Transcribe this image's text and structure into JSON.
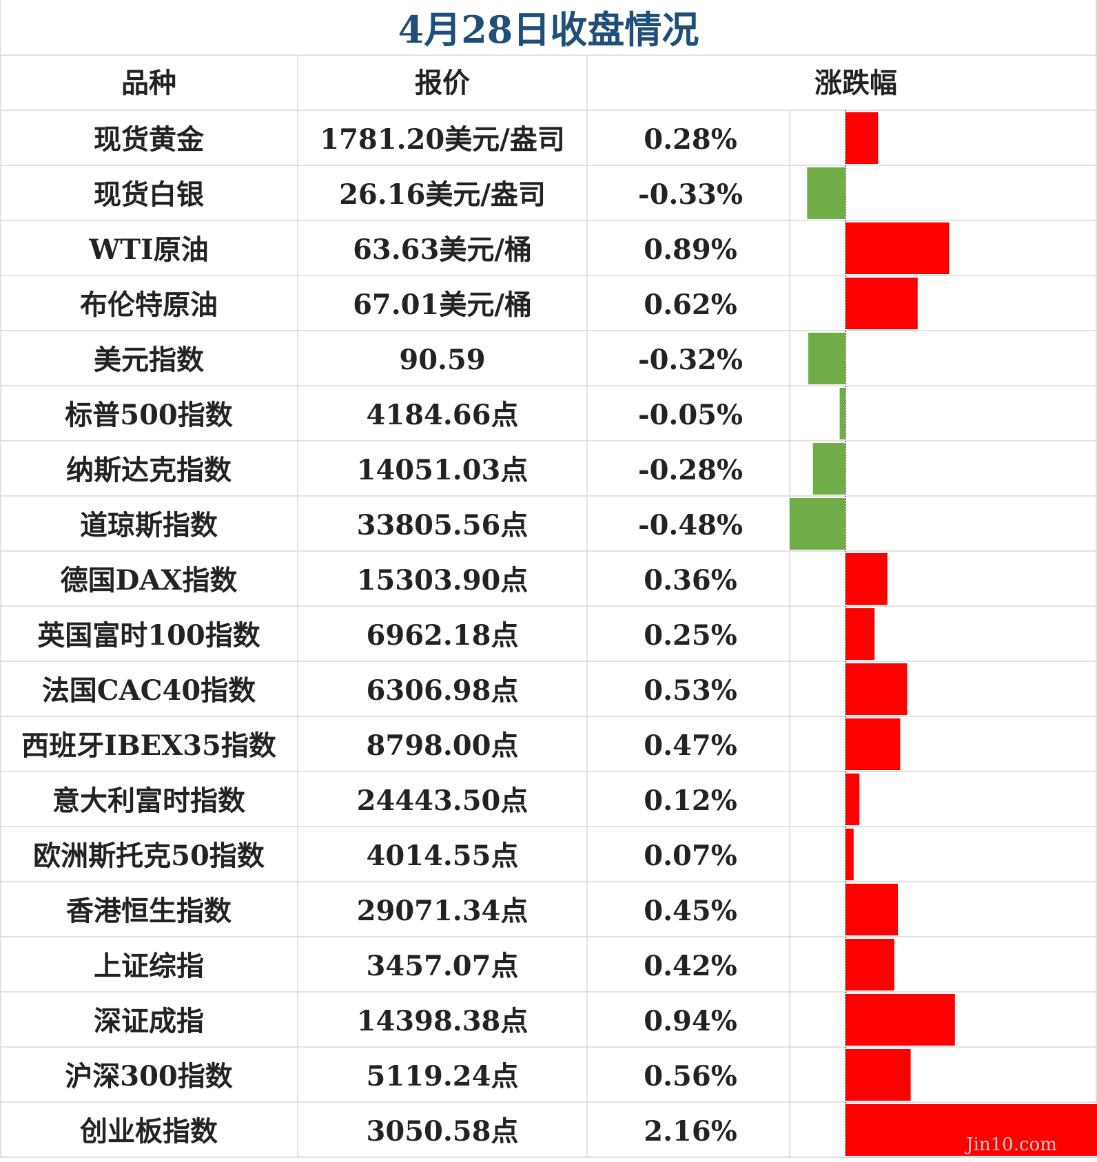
{
  "title": "4月28日收盘情况",
  "columns": [
    "品种",
    "报价",
    "涨跌幅"
  ],
  "watermark": "Jin10.com",
  "colors": {
    "title": "#1f4e79",
    "up": "#ff0000",
    "down": "#70ad47",
    "grid": "#d9d9d9",
    "text": "#222222"
  },
  "chart_data": {
    "type": "table",
    "title": "4月28日收盘情况",
    "columns": [
      "品种",
      "报价",
      "涨跌幅"
    ],
    "rows": [
      {
        "name": "现货黄金",
        "price": "1781.20美元/盎司",
        "change_label": "0.28%",
        "change": 0.28
      },
      {
        "name": "现货白银",
        "price": "26.16美元/盎司",
        "change_label": "-0.33%",
        "change": -0.33
      },
      {
        "name": "WTI原油",
        "price": "63.63美元/桶",
        "change_label": "0.89%",
        "change": 0.89
      },
      {
        "name": "布伦特原油",
        "price": "67.01美元/桶",
        "change_label": "0.62%",
        "change": 0.62
      },
      {
        "name": "美元指数",
        "price": "90.59",
        "change_label": "-0.32%",
        "change": -0.32
      },
      {
        "name": "标普500指数",
        "price": "4184.66点",
        "change_label": "-0.05%",
        "change": -0.05
      },
      {
        "name": "纳斯达克指数",
        "price": "14051.03点",
        "change_label": "-0.28%",
        "change": -0.28
      },
      {
        "name": "道琼斯指数",
        "price": "33805.56点",
        "change_label": "-0.48%",
        "change": -0.48
      },
      {
        "name": "德国DAX指数",
        "price": "15303.90点",
        "change_label": "0.36%",
        "change": 0.36
      },
      {
        "name": "英国富时100指数",
        "price": "6962.18点",
        "change_label": "0.25%",
        "change": 0.25
      },
      {
        "name": "法国CAC40指数",
        "price": "6306.98点",
        "change_label": "0.53%",
        "change": 0.53
      },
      {
        "name": "西班牙IBEX35指数",
        "price": "8798.00点",
        "change_label": "0.47%",
        "change": 0.47
      },
      {
        "name": "意大利富时指数",
        "price": "24443.50点",
        "change_label": "0.12%",
        "change": 0.12
      },
      {
        "name": "欧洲斯托克50指数",
        "price": "4014.55点",
        "change_label": "0.07%",
        "change": 0.07
      },
      {
        "name": "香港恒生指数",
        "price": "29071.34点",
        "change_label": "0.45%",
        "change": 0.45
      },
      {
        "name": "上证综指",
        "price": "3457.07点",
        "change_label": "0.42%",
        "change": 0.42
      },
      {
        "name": "深证成指",
        "price": "14398.38点",
        "change_label": "0.94%",
        "change": 0.94
      },
      {
        "name": "沪深300指数",
        "price": "5119.24点",
        "change_label": "0.56%",
        "change": 0.56
      },
      {
        "name": "创业板指数",
        "price": "3050.58点",
        "change_label": "2.16%",
        "change": 2.16
      }
    ],
    "bar_domain": [
      -0.48,
      2.16
    ]
  }
}
